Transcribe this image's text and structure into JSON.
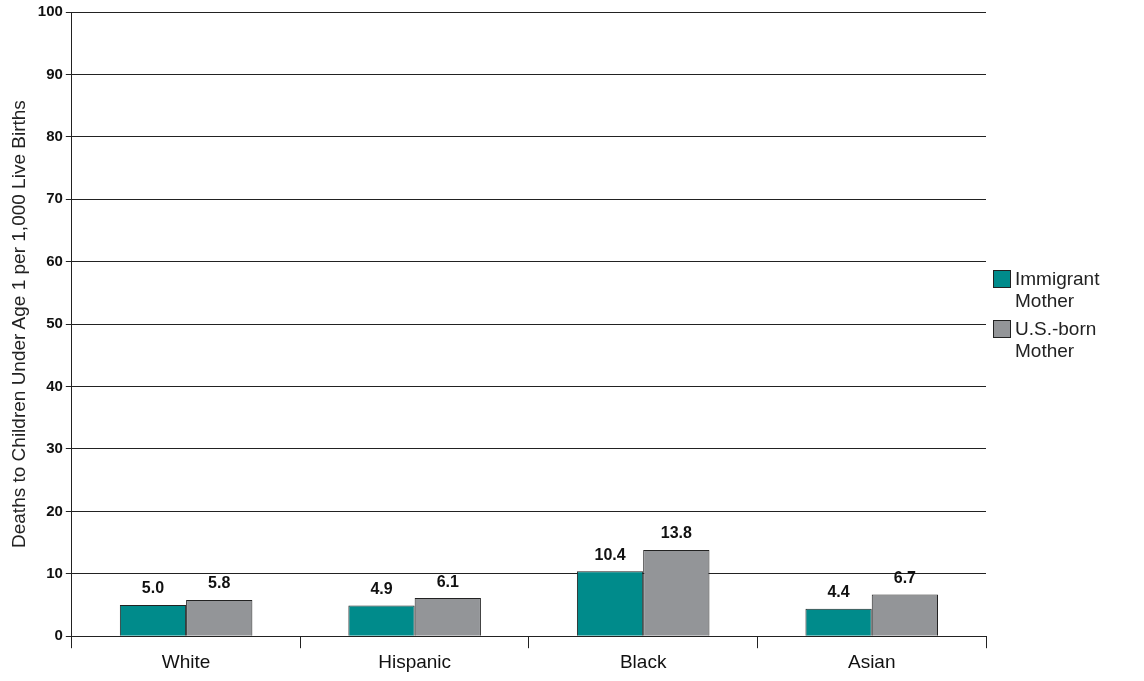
{
  "chart_data": {
    "type": "bar",
    "ylabel": "Deaths to Children Under Age 1 per 1,000 Live Births",
    "categories": [
      "White",
      "Hispanic",
      "Black",
      "Asian"
    ],
    "series": [
      {
        "name": "Immigrant Mother",
        "color": "#008b8b",
        "values": [
          5.0,
          4.9,
          10.4,
          4.4
        ],
        "value_labels": [
          "5.0",
          "4.9",
          "10.4",
          "4.4"
        ]
      },
      {
        "name": "U.S.-born Mother",
        "color": "#939598",
        "values": [
          5.8,
          6.1,
          13.8,
          6.7
        ],
        "value_labels": [
          "5.8",
          "6.1",
          "13.8",
          "6.7"
        ]
      }
    ],
    "ylim": [
      0,
      100
    ],
    "yticks": [
      0,
      10,
      20,
      30,
      40,
      50,
      60,
      70,
      80,
      90,
      100
    ],
    "grid": "y",
    "legend": "right"
  }
}
